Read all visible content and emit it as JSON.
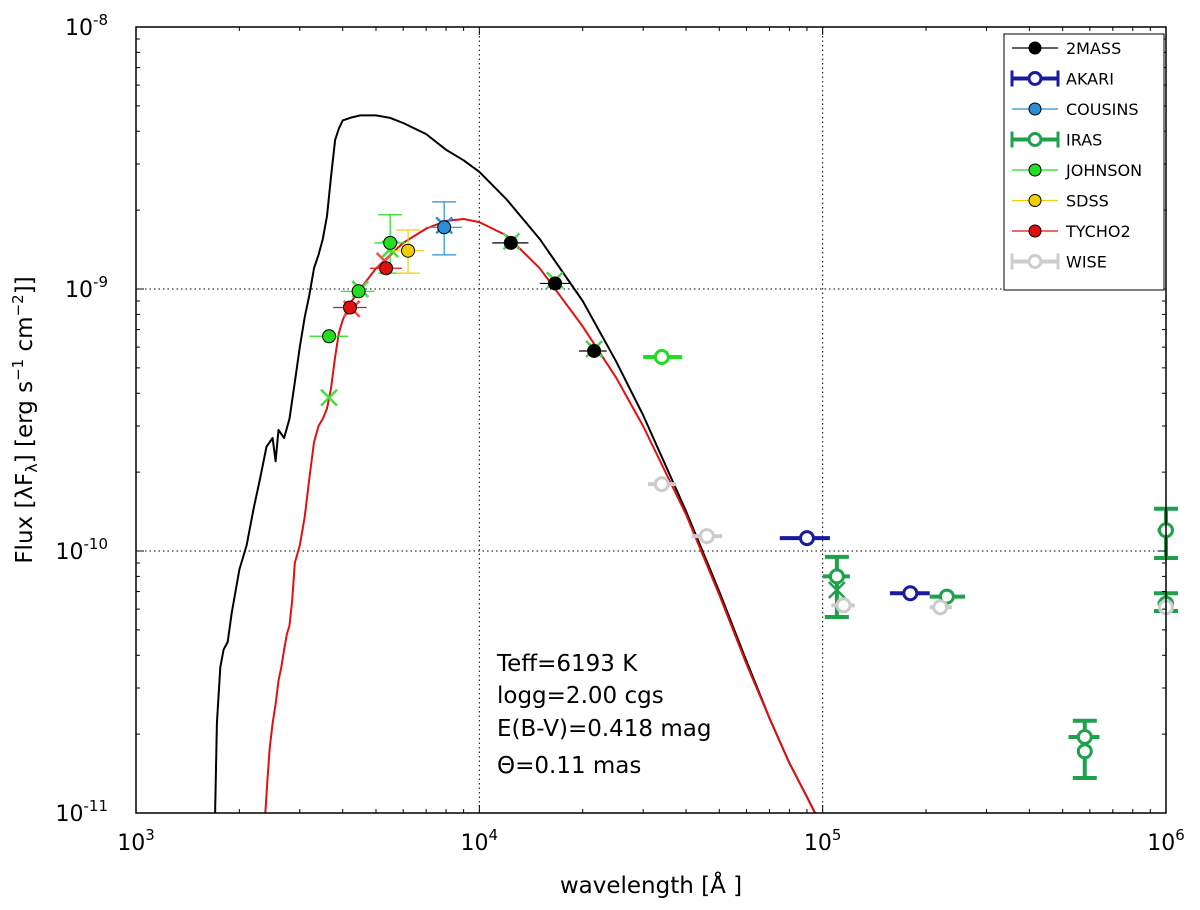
{
  "chart_data": {
    "type": "scatter",
    "xscale": "log",
    "yscale": "log",
    "xlim": [
      1000,
      1000000
    ],
    "ylim": [
      1e-11,
      1e-08
    ],
    "xlabel": "wavelength [Å ]",
    "ylabel": "Flux [λF",
    "ylabel_sub": "λ",
    "ylabel_tail": "] [erg  s",
    "ylabel_unit2": " cm",
    "ylabel_end": "]]",
    "ylabel_exp": "−1",
    "ylabel_exp2": "−2",
    "x_ticks": [
      {
        "value": 1000,
        "base": "10",
        "exp": "3"
      },
      {
        "value": 10000,
        "base": "10",
        "exp": "4"
      },
      {
        "value": 100000,
        "base": "10",
        "exp": "5"
      },
      {
        "value": 1000000,
        "base": "10",
        "exp": "6"
      }
    ],
    "y_ticks": [
      {
        "value": 1e-11,
        "base": "10",
        "exp": "-11"
      },
      {
        "value": 1e-10,
        "base": "10",
        "exp": "-10"
      },
      {
        "value": 1e-09,
        "base": "10",
        "exp": "-9"
      },
      {
        "value": 1e-08,
        "base": "10",
        "exp": "-8"
      }
    ],
    "grid": "dotted at major decades",
    "legend_position": "top-right",
    "colors": {
      "2MASS": "#000000",
      "AKARI": "#1a1aa0",
      "COUSINS": "#2a8fd6",
      "IRAS": "#1fa04a",
      "JOHNSON": "#22dd22",
      "SDSS": "#f2d000",
      "TYCHO2": "#e01010",
      "WISE": "#cccccc",
      "model_intrinsic": "#000000",
      "model_reddened": "#e01010",
      "synthetic_cross": "#44dd44",
      "synthetic_cross_alt": "#ff4a4a"
    },
    "legend": [
      {
        "name": "2MASS",
        "style": "filled"
      },
      {
        "name": "AKARI",
        "style": "open"
      },
      {
        "name": "COUSINS",
        "style": "filled"
      },
      {
        "name": "IRAS",
        "style": "open"
      },
      {
        "name": "JOHNSON",
        "style": "filled"
      },
      {
        "name": "SDSS",
        "style": "filled"
      },
      {
        "name": "TYCHO2",
        "style": "filled"
      },
      {
        "name": "WISE",
        "style": "open"
      }
    ],
    "annotation": [
      "Teff=6193 K",
      "logg=2.00 cgs",
      "E(B-V)=0.418 mag",
      "Θ=0.11 mas"
    ],
    "series": [
      {
        "name": "2MASS",
        "style": "filled",
        "points": [
          {
            "x": 12350,
            "y": 1.5e-09,
            "xerr": [
              10900,
              13900
            ]
          },
          {
            "x": 16620,
            "y": 1.05e-09,
            "xerr": [
              15000,
              18300
            ]
          },
          {
            "x": 21590,
            "y": 5.8e-10,
            "xerr": [
              19500,
              23500
            ]
          }
        ]
      },
      {
        "name": "AKARI",
        "style": "open",
        "points": [
          {
            "x": 90000,
            "y": 1.12e-10,
            "xerr": [
              75000,
              105000
            ]
          },
          {
            "x": 180000,
            "y": 6.9e-11,
            "xerr": [
              157000,
              205000
            ]
          }
        ]
      },
      {
        "name": "COUSINS",
        "style": "filled",
        "points": [
          {
            "x": 7900,
            "y": 1.72e-09,
            "xerr": [
              7000,
              8900
            ],
            "yerr": [
              1.35e-09,
              2.15e-09
            ]
          }
        ]
      },
      {
        "name": "IRAS",
        "style": "open",
        "points": [
          {
            "x": 110000,
            "y": 8e-11,
            "xerr": [
              100000,
              120000
            ],
            "yerr": [
              5.6e-11,
              9.5e-11
            ]
          },
          {
            "x": 230000,
            "y": 6.7e-11,
            "xerr": [
              205000,
              260000
            ]
          },
          {
            "x": 580000,
            "y": 1.95e-11,
            "xerr": [
              520000,
              640000
            ],
            "yerr": [
              1.36e-11,
              2.25e-11
            ]
          },
          {
            "x": 580000,
            "y": 1.72e-11
          },
          {
            "x": 1000000,
            "y": 1.2e-10,
            "xerr": [
              945000,
              1000000
            ],
            "yerr": [
              9.4e-11,
              1.45e-10
            ]
          },
          {
            "x": 1000000,
            "y": 6.3e-11,
            "xerr": [
              945000,
              1000000
            ],
            "yerr": [
              5.9e-11,
              6.9e-11
            ]
          }
        ]
      },
      {
        "name": "JOHNSON",
        "style": "filled",
        "points": [
          {
            "x": 3650,
            "y": 6.6e-10,
            "xerr": [
              3200,
              4150
            ]
          },
          {
            "x": 4450,
            "y": 9.8e-10,
            "xerr": [
              3950,
              4950
            ]
          },
          {
            "x": 5500,
            "y": 1.5e-09,
            "xerr": [
              4950,
              6100
            ],
            "yerr": [
              1.15e-09,
              1.92e-09
            ]
          }
        ]
      },
      {
        "name": "JOHNSON-open",
        "style": "open",
        "color_key": "JOHNSON",
        "points": [
          {
            "x": 34000,
            "y": 5.5e-10,
            "xerr": [
              30000,
              39000
            ]
          }
        ]
      },
      {
        "name": "SDSS",
        "style": "filled",
        "points": [
          {
            "x": 6200,
            "y": 1.4e-09,
            "xerr": [
              5600,
              6900
            ],
            "yerr": [
              1.15e-09,
              1.68e-09
            ]
          }
        ]
      },
      {
        "name": "TYCHO2",
        "style": "filled",
        "points": [
          {
            "x": 4200,
            "y": 8.5e-10,
            "xerr": [
              3750,
              4700
            ]
          },
          {
            "x": 5350,
            "y": 1.2e-09,
            "xerr": [
              4800,
              5950
            ]
          }
        ]
      },
      {
        "name": "WISE",
        "style": "open",
        "points": [
          {
            "x": 34000,
            "y": 1.8e-10,
            "xerr": [
              31000,
              37500
            ]
          },
          {
            "x": 46000,
            "y": 1.14e-10,
            "xerr": [
              41500,
              51000
            ]
          },
          {
            "x": 115000,
            "y": 6.2e-11,
            "xerr": [
              106000,
              124000
            ]
          },
          {
            "x": 220000,
            "y": 6.1e-11,
            "xerr": [
              205000,
              238000
            ]
          },
          {
            "x": 1000000,
            "y": 6.1e-11
          }
        ]
      }
    ],
    "synthetic_markers": [
      {
        "x": 3650,
        "y": 3.85e-10,
        "color_key": "synthetic_cross"
      },
      {
        "x": 4250,
        "y": 8.4e-10,
        "color_key": "synthetic_cross_alt"
      },
      {
        "x": 4500,
        "y": 1e-09,
        "color_key": "synthetic_cross"
      },
      {
        "x": 5300,
        "y": 1.28e-09,
        "color_key": "synthetic_cross_alt"
      },
      {
        "x": 5500,
        "y": 1.42e-09,
        "color_key": "synthetic_cross"
      },
      {
        "x": 7900,
        "y": 1.75e-09,
        "color_key": "COUSINS"
      },
      {
        "x": 12400,
        "y": 1.52e-09,
        "color_key": "synthetic_cross"
      },
      {
        "x": 16600,
        "y": 1.08e-09,
        "color_key": "synthetic_cross"
      },
      {
        "x": 21600,
        "y": 5.9e-10,
        "color_key": "synthetic_cross"
      },
      {
        "x": 110000,
        "y": 7.1e-11,
        "color_key": "IRAS"
      }
    ],
    "model_intrinsic": [
      [
        1700,
        1e-11
      ],
      [
        1720,
        2.2e-11
      ],
      [
        1760,
        3.6e-11
      ],
      [
        1800,
        4.2e-11
      ],
      [
        1850,
        4.5e-11
      ],
      [
        1900,
        5.8e-11
      ],
      [
        2000,
        8.5e-11
      ],
      [
        2100,
        1.05e-10
      ],
      [
        2200,
        1.45e-10
      ],
      [
        2300,
        1.9e-10
      ],
      [
        2400,
        2.5e-10
      ],
      [
        2500,
        2.7e-10
      ],
      [
        2550,
        2.2e-10
      ],
      [
        2600,
        2.9e-10
      ],
      [
        2700,
        2.7e-10
      ],
      [
        2800,
        3.2e-10
      ],
      [
        2900,
        4.4e-10
      ],
      [
        3000,
        6e-10
      ],
      [
        3100,
        7.8e-10
      ],
      [
        3200,
        9.5e-10
      ],
      [
        3300,
        1.2e-09
      ],
      [
        3400,
        1.35e-09
      ],
      [
        3500,
        1.55e-09
      ],
      [
        3600,
        1.9e-09
      ],
      [
        3700,
        2.7e-09
      ],
      [
        3800,
        3.7e-09
      ],
      [
        3900,
        4.1e-09
      ],
      [
        4000,
        4.4e-09
      ],
      [
        4200,
        4.5e-09
      ],
      [
        4500,
        4.6e-09
      ],
      [
        5000,
        4.6e-09
      ],
      [
        5500,
        4.5e-09
      ],
      [
        6000,
        4.3e-09
      ],
      [
        7000,
        3.9e-09
      ],
      [
        8000,
        3.4e-09
      ],
      [
        9000,
        3.1e-09
      ],
      [
        10000,
        2.8e-09
      ],
      [
        12000,
        2.2e-09
      ],
      [
        15000,
        1.55e-09
      ],
      [
        20000,
        9e-10
      ],
      [
        25000,
        5.3e-10
      ],
      [
        30000,
        3.3e-10
      ],
      [
        40000,
        1.42e-10
      ],
      [
        50000,
        7e-11
      ],
      [
        60000,
        3.8e-11
      ],
      [
        70000,
        2.3e-11
      ],
      [
        80000,
        1.55e-11
      ],
      [
        90000,
        1.15e-11
      ],
      [
        95000,
        1e-11
      ]
    ],
    "model_reddened": [
      [
        2380,
        1e-11
      ],
      [
        2420,
        1.4e-11
      ],
      [
        2450,
        1.75e-11
      ],
      [
        2500,
        2.2e-11
      ],
      [
        2550,
        2.6e-11
      ],
      [
        2600,
        3.2e-11
      ],
      [
        2650,
        3.6e-11
      ],
      [
        2700,
        4.2e-11
      ],
      [
        2750,
        4.8e-11
      ],
      [
        2800,
        5.2e-11
      ],
      [
        2850,
        6.5e-11
      ],
      [
        2900,
        9e-11
      ],
      [
        3000,
        1.05e-10
      ],
      [
        3100,
        1.35e-10
      ],
      [
        3200,
        1.9e-10
      ],
      [
        3300,
        2.6e-10
      ],
      [
        3400,
        3e-10
      ],
      [
        3500,
        3.2e-10
      ],
      [
        3600,
        3.5e-10
      ],
      [
        3700,
        4.2e-10
      ],
      [
        3800,
        5.5e-10
      ],
      [
        3900,
        6.8e-10
      ],
      [
        4000,
        7.6e-10
      ],
      [
        4200,
        8.8e-10
      ],
      [
        4500,
        1e-09
      ],
      [
        5000,
        1.2e-09
      ],
      [
        5500,
        1.35e-09
      ],
      [
        6000,
        1.5e-09
      ],
      [
        7000,
        1.7e-09
      ],
      [
        8000,
        1.82e-09
      ],
      [
        9000,
        1.85e-09
      ],
      [
        10000,
        1.8e-09
      ],
      [
        12000,
        1.6e-09
      ],
      [
        15000,
        1.2e-09
      ],
      [
        20000,
        7.2e-10
      ],
      [
        25000,
        4.6e-10
      ],
      [
        30000,
        3e-10
      ],
      [
        40000,
        1.38e-10
      ],
      [
        50000,
        6.8e-11
      ],
      [
        60000,
        3.7e-11
      ],
      [
        70000,
        2.3e-11
      ],
      [
        80000,
        1.55e-11
      ],
      [
        90000,
        1.15e-11
      ],
      [
        95000,
        1e-11
      ]
    ]
  }
}
